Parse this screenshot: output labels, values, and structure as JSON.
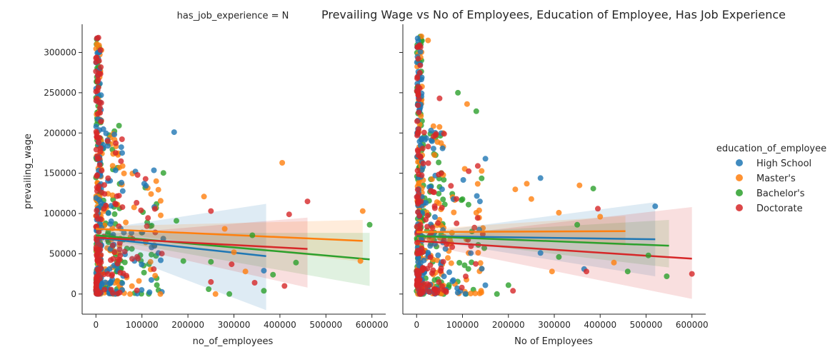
{
  "chart_data": {
    "type": "scatter",
    "title": "Prevailing Wage vs No of Employees, Education of Employee, Has Job Experience",
    "legend": {
      "title": "education_of_employee",
      "placement": "right",
      "entries": [
        {
          "name": "High School",
          "color": "#1f77b4"
        },
        {
          "name": "Master's",
          "color": "#ff7f0e"
        },
        {
          "name": "Bachelor's",
          "color": "#2ca02c"
        },
        {
          "name": "Doctorate",
          "color": "#d62728"
        }
      ]
    },
    "y_label": "prevailing_wage",
    "y_ticks": [
      0,
      50000,
      100000,
      150000,
      200000,
      250000,
      300000
    ],
    "y_range": [
      -25000,
      335000
    ],
    "x_ticks": [
      0,
      100000,
      200000,
      300000,
      400000,
      500000,
      600000
    ],
    "x_range": [
      -30000,
      630000
    ],
    "panels": [
      {
        "facet_title": "has_job_experience = N",
        "x_label": "no_of_employees",
        "regression": [
          {
            "series": "High School",
            "x": [
              0,
              370000
            ],
            "y": [
              70000,
              47000
            ],
            "band": [
              [
                60000,
                80000
              ],
              [
                -20000,
                112000
              ]
            ]
          },
          {
            "series": "Master's",
            "x": [
              0,
              580000
            ],
            "y": [
              81000,
              66000
            ],
            "band": [
              [
                78000,
                84000
              ],
              [
                40000,
                92000
              ]
            ]
          },
          {
            "series": "Bachelor's",
            "x": [
              0,
              595000
            ],
            "y": [
              73000,
              43000
            ],
            "band": [
              [
                70000,
                76000
              ],
              [
                10000,
                76000
              ]
            ]
          },
          {
            "series": "Doctorate",
            "x": [
              0,
              460000
            ],
            "y": [
              70000,
              56000
            ],
            "band": [
              [
                67000,
                73000
              ],
              [
                8000,
                95000
              ]
            ]
          }
        ],
        "outliers": [
          {
            "series": "High School",
            "x": 170000,
            "y": 201000
          },
          {
            "series": "High School",
            "x": 365000,
            "y": 29000
          },
          {
            "series": "High School",
            "x": 105000,
            "y": 137000
          },
          {
            "series": "Master's",
            "x": 405000,
            "y": 163000
          },
          {
            "series": "Master's",
            "x": 580000,
            "y": 103000
          },
          {
            "series": "Master's",
            "x": 575000,
            "y": 41000
          },
          {
            "series": "Master's",
            "x": 235000,
            "y": 121000
          },
          {
            "series": "Master's",
            "x": 280000,
            "y": 81000
          },
          {
            "series": "Master's",
            "x": 325000,
            "y": 28000
          },
          {
            "series": "Master's",
            "x": 260000,
            "y": 0
          },
          {
            "series": "Master's",
            "x": 300000,
            "y": 52000
          },
          {
            "series": "Master's",
            "x": 140000,
            "y": 0
          },
          {
            "series": "Bachelor's",
            "x": 595000,
            "y": 86000
          },
          {
            "series": "Bachelor's",
            "x": 435000,
            "y": 39000
          },
          {
            "series": "Bachelor's",
            "x": 385000,
            "y": 24000
          },
          {
            "series": "Bachelor's",
            "x": 365000,
            "y": 4000
          },
          {
            "series": "Bachelor's",
            "x": 340000,
            "y": 73000
          },
          {
            "series": "Bachelor's",
            "x": 290000,
            "y": 0
          },
          {
            "series": "Bachelor's",
            "x": 250000,
            "y": 40000
          },
          {
            "series": "Bachelor's",
            "x": 190000,
            "y": 41000
          },
          {
            "series": "Bachelor's",
            "x": 175000,
            "y": 91000
          },
          {
            "series": "Bachelor's",
            "x": 245000,
            "y": 6000
          },
          {
            "series": "Doctorate",
            "x": 460000,
            "y": 115000
          },
          {
            "series": "Doctorate",
            "x": 420000,
            "y": 99000
          },
          {
            "series": "Doctorate",
            "x": 410000,
            "y": 10000
          },
          {
            "series": "Doctorate",
            "x": 345000,
            "y": 14000
          },
          {
            "series": "Doctorate",
            "x": 295000,
            "y": 37000
          },
          {
            "series": "Doctorate",
            "x": 250000,
            "y": 103000
          },
          {
            "series": "Doctorate",
            "x": 250000,
            "y": 15000
          }
        ]
      },
      {
        "facet_title": "",
        "x_label": "No of Employees",
        "regression": [
          {
            "series": "High School",
            "x": [
              0,
              520000
            ],
            "y": [
              72000,
              68000
            ],
            "band": [
              [
                69000,
                75000
              ],
              [
                22000,
                114000
              ]
            ]
          },
          {
            "series": "Master's",
            "x": [
              0,
              455000
            ],
            "y": [
              77000,
              78000
            ],
            "band": [
              [
                75000,
                80000
              ],
              [
                60000,
                97000
              ]
            ]
          },
          {
            "series": "Bachelor's",
            "x": [
              0,
              550000
            ],
            "y": [
              72000,
              60000
            ],
            "band": [
              [
                70000,
                74000
              ],
              [
                33000,
                92000
              ]
            ]
          },
          {
            "series": "Doctorate",
            "x": [
              0,
              600000
            ],
            "y": [
              66000,
              44000
            ],
            "band": [
              [
                63000,
                69000
              ],
              [
                -6000,
                108000
              ]
            ]
          }
        ],
        "outliers": [
          {
            "series": "High School",
            "x": 520000,
            "y": 109000
          },
          {
            "series": "High School",
            "x": 270000,
            "y": 144000
          },
          {
            "series": "High School",
            "x": 150000,
            "y": 168000
          },
          {
            "series": "High School",
            "x": 365000,
            "y": 31000
          },
          {
            "series": "High School",
            "x": 270000,
            "y": 51000
          },
          {
            "series": "Master's",
            "x": 355000,
            "y": 135000
          },
          {
            "series": "Master's",
            "x": 400000,
            "y": 96000
          },
          {
            "series": "Master's",
            "x": 310000,
            "y": 101000
          },
          {
            "series": "Master's",
            "x": 430000,
            "y": 39000
          },
          {
            "series": "Master's",
            "x": 295000,
            "y": 28000
          },
          {
            "series": "Master's",
            "x": 240000,
            "y": 137000
          },
          {
            "series": "Master's",
            "x": 215000,
            "y": 130000
          },
          {
            "series": "Master's",
            "x": 250000,
            "y": 118000
          },
          {
            "series": "Master's",
            "x": 110000,
            "y": 236000
          },
          {
            "series": "Master's",
            "x": 25000,
            "y": 315000
          },
          {
            "series": "Bachelor's",
            "x": 385000,
            "y": 131000
          },
          {
            "series": "Bachelor's",
            "x": 350000,
            "y": 86000
          },
          {
            "series": "Bachelor's",
            "x": 460000,
            "y": 28000
          },
          {
            "series": "Bachelor's",
            "x": 545000,
            "y": 22000
          },
          {
            "series": "Bachelor's",
            "x": 505000,
            "y": 48000
          },
          {
            "series": "Bachelor's",
            "x": 310000,
            "y": 46000
          },
          {
            "series": "Bachelor's",
            "x": 90000,
            "y": 250000
          },
          {
            "series": "Bachelor's",
            "x": 130000,
            "y": 227000
          },
          {
            "series": "Bachelor's",
            "x": 175000,
            "y": 0
          },
          {
            "series": "Bachelor's",
            "x": 200000,
            "y": 11000
          },
          {
            "series": "Doctorate",
            "x": 600000,
            "y": 25000
          },
          {
            "series": "Doctorate",
            "x": 395000,
            "y": 106000
          },
          {
            "series": "Doctorate",
            "x": 370000,
            "y": 28000
          },
          {
            "series": "Doctorate",
            "x": 210000,
            "y": 4000
          },
          {
            "series": "Doctorate",
            "x": 50000,
            "y": 243000
          },
          {
            "series": "Doctorate",
            "x": 60000,
            "y": 199000
          }
        ]
      }
    ]
  }
}
